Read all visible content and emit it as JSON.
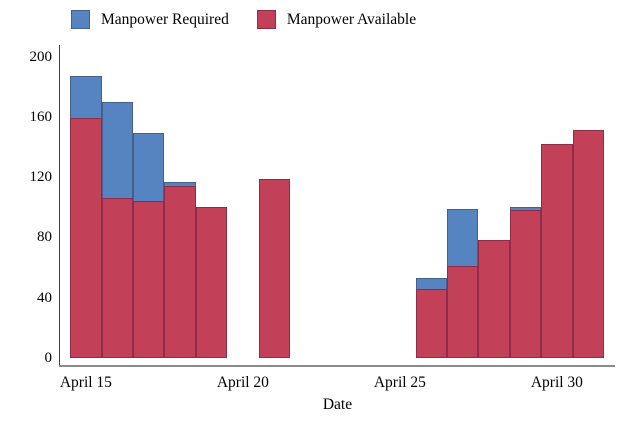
{
  "chart_data": {
    "type": "bar",
    "title": "",
    "xlabel": "Date",
    "ylabel": "",
    "ylim": [
      0,
      200
    ],
    "yticks": [
      0,
      40,
      80,
      120,
      160,
      200
    ],
    "xticks": [
      {
        "label": "April 15",
        "day": 0
      },
      {
        "label": "April 20",
        "day": 5
      },
      {
        "label": "April 25",
        "day": 10
      },
      {
        "label": "April 30",
        "day": 15
      }
    ],
    "legend": [
      {
        "label": "Manpower Required",
        "series": "required"
      },
      {
        "label": "Manpower Available",
        "series": "available"
      }
    ],
    "legend_position": "top",
    "grid": false,
    "bars": [
      {
        "date": "April 15",
        "day": 0,
        "required": 187,
        "available": 159
      },
      {
        "date": "April 16",
        "day": 1,
        "required": 170,
        "available": 106
      },
      {
        "date": "April 17",
        "day": 2,
        "required": 149,
        "available": 104
      },
      {
        "date": "April 18",
        "day": 3,
        "required": 117,
        "available": 114
      },
      {
        "date": "April 19",
        "day": 4,
        "required": null,
        "available": 100
      },
      {
        "date": "April 21",
        "day": 6,
        "required": null,
        "available": 119
      },
      {
        "date": "April 26",
        "day": 11,
        "required": 53,
        "available": 46
      },
      {
        "date": "April 27",
        "day": 12,
        "required": 99,
        "available": 61
      },
      {
        "date": "April 28",
        "day": 13,
        "required": null,
        "available": 78
      },
      {
        "date": "April 29",
        "day": 14,
        "required": 100,
        "available": 98
      },
      {
        "date": "April 30",
        "day": 15,
        "required": null,
        "available": 142
      },
      {
        "date": "May 1",
        "day": 16,
        "required": null,
        "available": 151
      }
    ],
    "colors": {
      "required_fill": "#5584c0",
      "required_border": "#44618c",
      "available_fill": "#c24158",
      "available_border": "#8e2d46",
      "y_axis": "#3f3f3f",
      "x_axis": "#8b8b8b"
    }
  }
}
